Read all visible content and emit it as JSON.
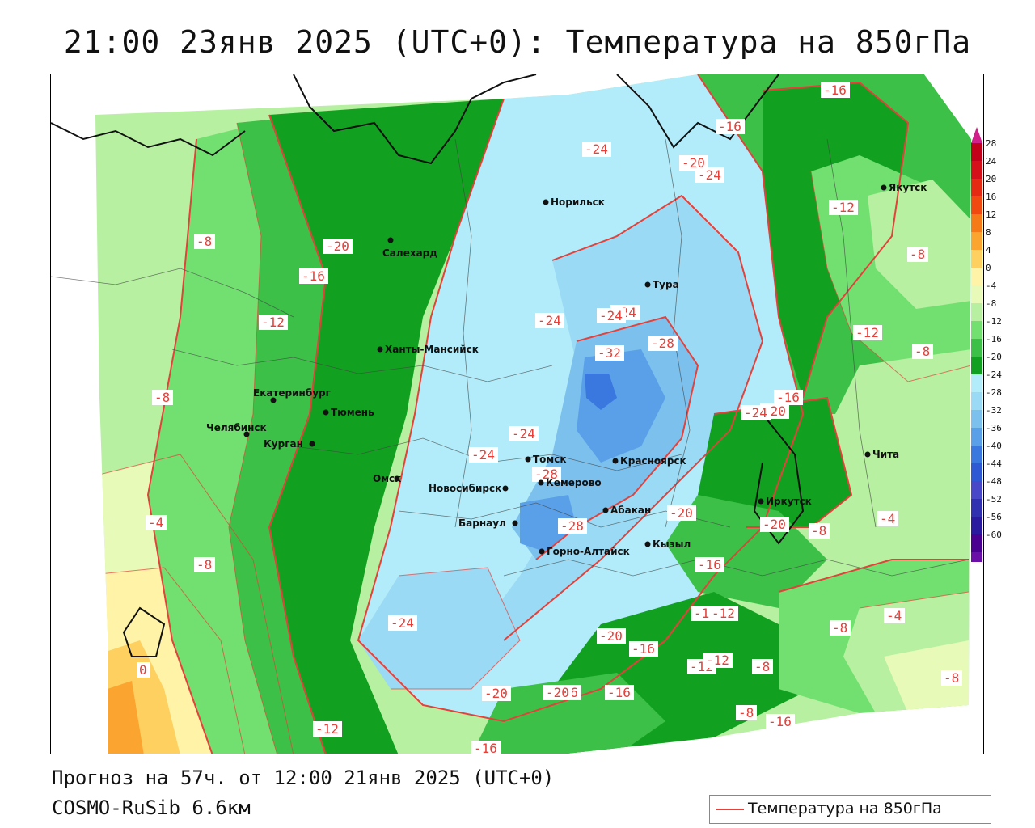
{
  "title": "21:00 23янв 2025 (UTC+0): Температура на 850гПа",
  "footer": {
    "forecast": "Прогноз на 57ч. от 12:00 21янв 2025 (UTC+0)",
    "model": "COSMO-RuSib 6.6км"
  },
  "legend": {
    "label": "Температура на 850гПа",
    "color": "#e5403a"
  },
  "colorbar": {
    "ticks": [
      "28",
      "24",
      "20",
      "16",
      "12",
      "8",
      "4",
      "0",
      "-4",
      "-8",
      "-12",
      "-16",
      "-20",
      "-24",
      "-28",
      "-32",
      "-36",
      "-40",
      "-44",
      "-48",
      "-52",
      "-56",
      "-60"
    ],
    "colors": [
      "#c2001a",
      "#d4101a",
      "#e42a12",
      "#f04a10",
      "#f77a18",
      "#fba530",
      "#fdd060",
      "#fff3a8",
      "#e8fab8",
      "#b6f0a0",
      "#72e070",
      "#3cc048",
      "#12a020",
      "#b2ecfa",
      "#9adaf4",
      "#7cc0ee",
      "#5aa0e8",
      "#3a78e0",
      "#2e58d4",
      "#4848c8",
      "#3030b0",
      "#2a1aa0",
      "#4a0090",
      "#6a10a8"
    ],
    "top_arrow_color": "#d0208a",
    "bottom_arrow_color": "#9a20c0"
  },
  "cities": [
    {
      "name": "Салехард",
      "label_side": "below"
    },
    {
      "name": "Норильск"
    },
    {
      "name": "Якутск"
    },
    {
      "name": "Тура"
    },
    {
      "name": "Ханты-Мансийск"
    },
    {
      "name": "Екатеринбург"
    },
    {
      "name": "Тюмень"
    },
    {
      "name": "Челябинск"
    },
    {
      "name": "Курган"
    },
    {
      "name": "Омск"
    },
    {
      "name": "Томск"
    },
    {
      "name": "Кемерово"
    },
    {
      "name": "Новосибирск"
    },
    {
      "name": "Барнаул"
    },
    {
      "name": "Красноярск"
    },
    {
      "name": "Абакан"
    },
    {
      "name": "Кызыл"
    },
    {
      "name": "Горно-Алтайск"
    },
    {
      "name": "Иркутск"
    },
    {
      "name": "Чита"
    }
  ],
  "isotherm_labels": [
    "-16",
    "-16",
    "-24",
    "-20",
    "-24",
    "-12",
    "-8",
    "-20",
    "-16",
    "-8",
    "-12",
    "-24",
    "-24",
    "-24",
    "-32",
    "-28",
    "-12",
    "-8",
    "-8",
    "-16",
    "-20",
    "-24",
    "-24",
    "-24",
    "-28",
    "-4",
    "-20",
    "-16",
    "-8",
    "-4",
    "-8",
    "-20",
    "-28",
    "-20",
    "-16",
    "-12",
    "-4",
    "0",
    "-24",
    "-20",
    "-16",
    "-12",
    "-8",
    "-12",
    "-16",
    "-20",
    "-16",
    "-12",
    "-8",
    "-8",
    "-16",
    "-12",
    "-8"
  ]
}
